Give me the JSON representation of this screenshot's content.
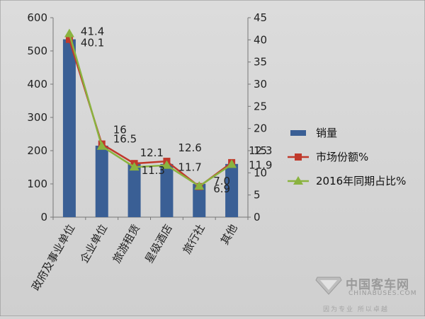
{
  "chart_data": {
    "type": "bar",
    "categories": [
      "政府及事业单位",
      "企业单位",
      "旅游租赁",
      "星级酒店",
      "旅行社",
      "其他"
    ],
    "series": [
      {
        "name": "销量",
        "type": "bar",
        "axis": "left",
        "values": [
          535,
          215,
          160,
          160,
          100,
          160
        ],
        "color": "#3a5f95"
      },
      {
        "name": "市场份额%",
        "type": "line",
        "axis": "right",
        "values": [
          40.1,
          16.5,
          12.1,
          12.6,
          6.9,
          12.3
        ],
        "color": "#c0392b",
        "labels": [
          "40.1",
          "16.5",
          "12.1",
          "12.6",
          "6.9",
          "12.3"
        ]
      },
      {
        "name": "2016年同期占比%",
        "type": "line",
        "axis": "right",
        "values": [
          41.4,
          16.0,
          11.3,
          11.7,
          7.0,
          11.9
        ],
        "color": "#8ab33f",
        "labels": [
          "41.4",
          "16",
          "11.3",
          "11.7",
          "7.0",
          "11.9"
        ]
      }
    ],
    "yleft": {
      "min": 0,
      "max": 600,
      "ticks": [
        "0",
        "100",
        "200",
        "300",
        "400",
        "500",
        "600"
      ]
    },
    "yright": {
      "min": 0,
      "max": 45,
      "ticks": [
        "0",
        "5",
        "10",
        "15",
        "20",
        "25",
        "30",
        "35",
        "40",
        "45"
      ]
    },
    "legend_position": "right",
    "grid": false
  },
  "watermark": {
    "brand": "中国客车网",
    "site": "CHINABUSES.COM",
    "slogan": "因为专业 所以卓越"
  }
}
